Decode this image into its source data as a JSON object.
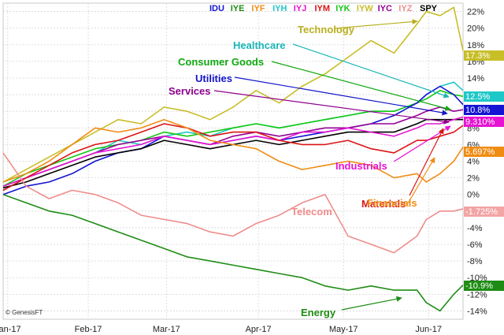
{
  "chart_data": {
    "type": "line",
    "title": "",
    "xlabel": "",
    "ylabel": "",
    "ylim": [
      -15,
      24
    ],
    "y_ticks": [
      22,
      20,
      18,
      16,
      14,
      12,
      10,
      8,
      6,
      4,
      2,
      0,
      -2,
      -4,
      -6,
      -8,
      -10,
      -12,
      -14
    ],
    "y_tick_labels": [
      "22%",
      "20%",
      "18%",
      "16%",
      "14%",
      "12%",
      "10%",
      "8%",
      "6%",
      "4%",
      "2%",
      "0%",
      "-2%",
      "-4%",
      "-6%",
      "-8%",
      "-10%",
      "-12%",
      "-14%"
    ],
    "x_ticks": [
      {
        "label": "Jan-17",
        "t": 0.01
      },
      {
        "label": "Feb-17",
        "t": 0.185
      },
      {
        "label": "Mar-17",
        "t": 0.355
      },
      {
        "label": "Apr-17",
        "t": 0.555
      },
      {
        "label": "May-17",
        "t": 0.74
      },
      {
        "label": "Jun-17",
        "t": 0.925
      }
    ],
    "x": [
      0.0,
      0.05,
      0.1,
      0.15,
      0.2,
      0.25,
      0.3,
      0.35,
      0.4,
      0.45,
      0.5,
      0.55,
      0.6,
      0.65,
      0.7,
      0.75,
      0.8,
      0.85,
      0.9,
      0.92,
      0.95,
      0.98,
      1.0
    ],
    "legend": {
      "placement": "top-right",
      "entries": [
        {
          "label": "IDU",
          "color": "#1414d2"
        },
        {
          "label": "IYE",
          "color": "#1e8c14"
        },
        {
          "label": "IYF",
          "color": "#f08c14"
        },
        {
          "label": "IYH",
          "color": "#1ec8c8"
        },
        {
          "label": "IYJ",
          "color": "#e614d2"
        },
        {
          "label": "IYM",
          "color": "#dc1414"
        },
        {
          "label": "IYK",
          "color": "#14c814"
        },
        {
          "label": "IYW",
          "color": "#c8be28"
        },
        {
          "label": "IYC",
          "color": "#960096"
        },
        {
          "label": "IYZ",
          "color": "#f08c8c"
        },
        {
          "label": "SPY",
          "color": "#000000"
        }
      ]
    },
    "series": [
      {
        "name": "IYW",
        "label": "Technology",
        "color": "#c8be28",
        "end_label": "17.3%",
        "values": [
          1.5,
          3.0,
          4.5,
          6.0,
          7.5,
          9.0,
          8.5,
          10.5,
          10.0,
          9.0,
          10.5,
          12.5,
          11.0,
          13.0,
          14.5,
          16.5,
          18.5,
          17.0,
          20.5,
          22.0,
          21.5,
          22.5,
          17.3
        ]
      },
      {
        "name": "IYH",
        "label": "Healthcare",
        "color": "#1ec8c8",
        "end_label": "12.5%",
        "values": [
          1.0,
          2.0,
          3.0,
          4.0,
          5.0,
          6.5,
          6.0,
          7.0,
          7.5,
          7.0,
          8.0,
          8.5,
          8.0,
          8.5,
          9.0,
          9.5,
          10.0,
          10.0,
          11.0,
          12.0,
          13.0,
          13.5,
          12.5
        ]
      },
      {
        "name": "IYK",
        "label": "Consumer Goods",
        "color": "#14c814",
        "end_label": "",
        "values": [
          1.0,
          2.5,
          3.5,
          4.5,
          5.5,
          6.0,
          6.5,
          7.5,
          7.0,
          7.5,
          8.0,
          8.5,
          8.0,
          8.5,
          9.0,
          9.5,
          10.0,
          10.0,
          11.0,
          11.5,
          12.5,
          12.0,
          11.8
        ]
      },
      {
        "name": "IDU",
        "label": "Utilities",
        "color": "#1414d2",
        "end_label": "10.8%",
        "values": [
          0.0,
          1.0,
          1.5,
          2.5,
          4.0,
          5.0,
          5.5,
          7.0,
          6.5,
          6.0,
          6.5,
          7.0,
          6.5,
          7.0,
          7.5,
          8.0,
          8.5,
          9.5,
          11.0,
          12.0,
          13.0,
          12.0,
          10.8
        ]
      },
      {
        "name": "IYC",
        "label": "Services",
        "color": "#960096",
        "end_label": "",
        "values": [
          0.5,
          2.0,
          3.0,
          4.0,
          5.0,
          6.0,
          6.5,
          7.0,
          6.5,
          6.0,
          7.0,
          7.5,
          7.0,
          7.5,
          8.0,
          8.0,
          8.5,
          8.5,
          9.5,
          10.0,
          10.5,
          10.0,
          10.2
        ]
      },
      {
        "name": "SPY",
        "label": "",
        "color": "#000000",
        "end_label": "",
        "values": [
          0.8,
          1.5,
          2.5,
          3.5,
          4.5,
          5.0,
          5.5,
          6.5,
          6.0,
          5.5,
          6.0,
          6.5,
          6.0,
          6.5,
          7.0,
          7.5,
          7.5,
          7.5,
          8.5,
          9.0,
          9.0,
          9.0,
          9.0
        ]
      },
      {
        "name": "IYJ",
        "label": "Industrials",
        "color": "#e614d2",
        "end_label": "9.310%",
        "values": [
          1.0,
          2.0,
          3.0,
          4.0,
          5.0,
          5.5,
          6.0,
          7.0,
          6.5,
          6.0,
          6.5,
          7.0,
          6.5,
          7.5,
          7.5,
          8.0,
          7.5,
          7.0,
          8.0,
          8.5,
          8.5,
          9.0,
          9.31
        ]
      },
      {
        "name": "IYM",
        "label": "Materials",
        "color": "#dc1414",
        "end_label": "",
        "values": [
          0.5,
          2.0,
          3.5,
          5.0,
          6.0,
          6.5,
          7.5,
          8.5,
          8.0,
          7.0,
          7.5,
          7.5,
          6.5,
          6.0,
          6.0,
          6.5,
          5.5,
          5.0,
          6.5,
          6.5,
          7.0,
          7.5,
          8.3
        ]
      },
      {
        "name": "IYF",
        "label": "Financials",
        "color": "#f08c14",
        "end_label": "5.697%",
        "values": [
          1.5,
          2.5,
          4.0,
          6.0,
          8.0,
          7.5,
          8.0,
          9.0,
          8.0,
          6.5,
          6.0,
          5.5,
          4.0,
          3.0,
          3.5,
          4.0,
          3.5,
          2.0,
          2.5,
          1.5,
          2.5,
          4.0,
          5.697
        ]
      },
      {
        "name": "IYZ",
        "label": "Telecom",
        "color": "#f08c8c",
        "end_label": "-1.725%",
        "values": [
          5.0,
          1.0,
          -0.5,
          0.5,
          0.0,
          -1.0,
          -2.5,
          -3.0,
          -3.5,
          -4.5,
          -5.0,
          -3.5,
          -2.5,
          -1.0,
          0.0,
          -5.0,
          -6.0,
          -7.0,
          -5.0,
          -3.0,
          -2.0,
          -2.0,
          -1.725
        ]
      },
      {
        "name": "IYE",
        "label": "Energy",
        "color": "#1e8c14",
        "end_label": "-10.9%",
        "values": [
          0.0,
          -1.0,
          -2.0,
          -2.5,
          -3.5,
          -4.5,
          -5.5,
          -6.5,
          -7.5,
          -8.0,
          -8.5,
          -9.0,
          -9.5,
          -10.0,
          -11.0,
          -11.5,
          -11.0,
          -11.5,
          -11.5,
          -13.0,
          -14.0,
          -12.0,
          -10.9
        ]
      }
    ],
    "annotations": [
      {
        "text": "Technology",
        "series": "IYW",
        "color": "#b9b020"
      },
      {
        "text": "Healthcare",
        "series": "IYH",
        "color": "#1ab5b5"
      },
      {
        "text": "Consumer Goods",
        "series": "IYK",
        "color": "#10a810"
      },
      {
        "text": "Utilities",
        "series": "IDU",
        "color": "#1414c8"
      },
      {
        "text": "Services",
        "series": "IYC",
        "color": "#8c008c"
      },
      {
        "text": "Industrials",
        "series": "IYJ",
        "color": "#e614d2"
      },
      {
        "text": "Materials",
        "series": "IYM",
        "color": "#dc1414"
      },
      {
        "text": "Financials",
        "series": "IYF",
        "color": "#f08c14"
      },
      {
        "text": "Telecom",
        "series": "IYZ",
        "color": "#f08c8c"
      },
      {
        "text": "Energy",
        "series": "IYE",
        "color": "#1e8c14"
      }
    ],
    "grid": true,
    "credit": "© GenesisFT"
  }
}
